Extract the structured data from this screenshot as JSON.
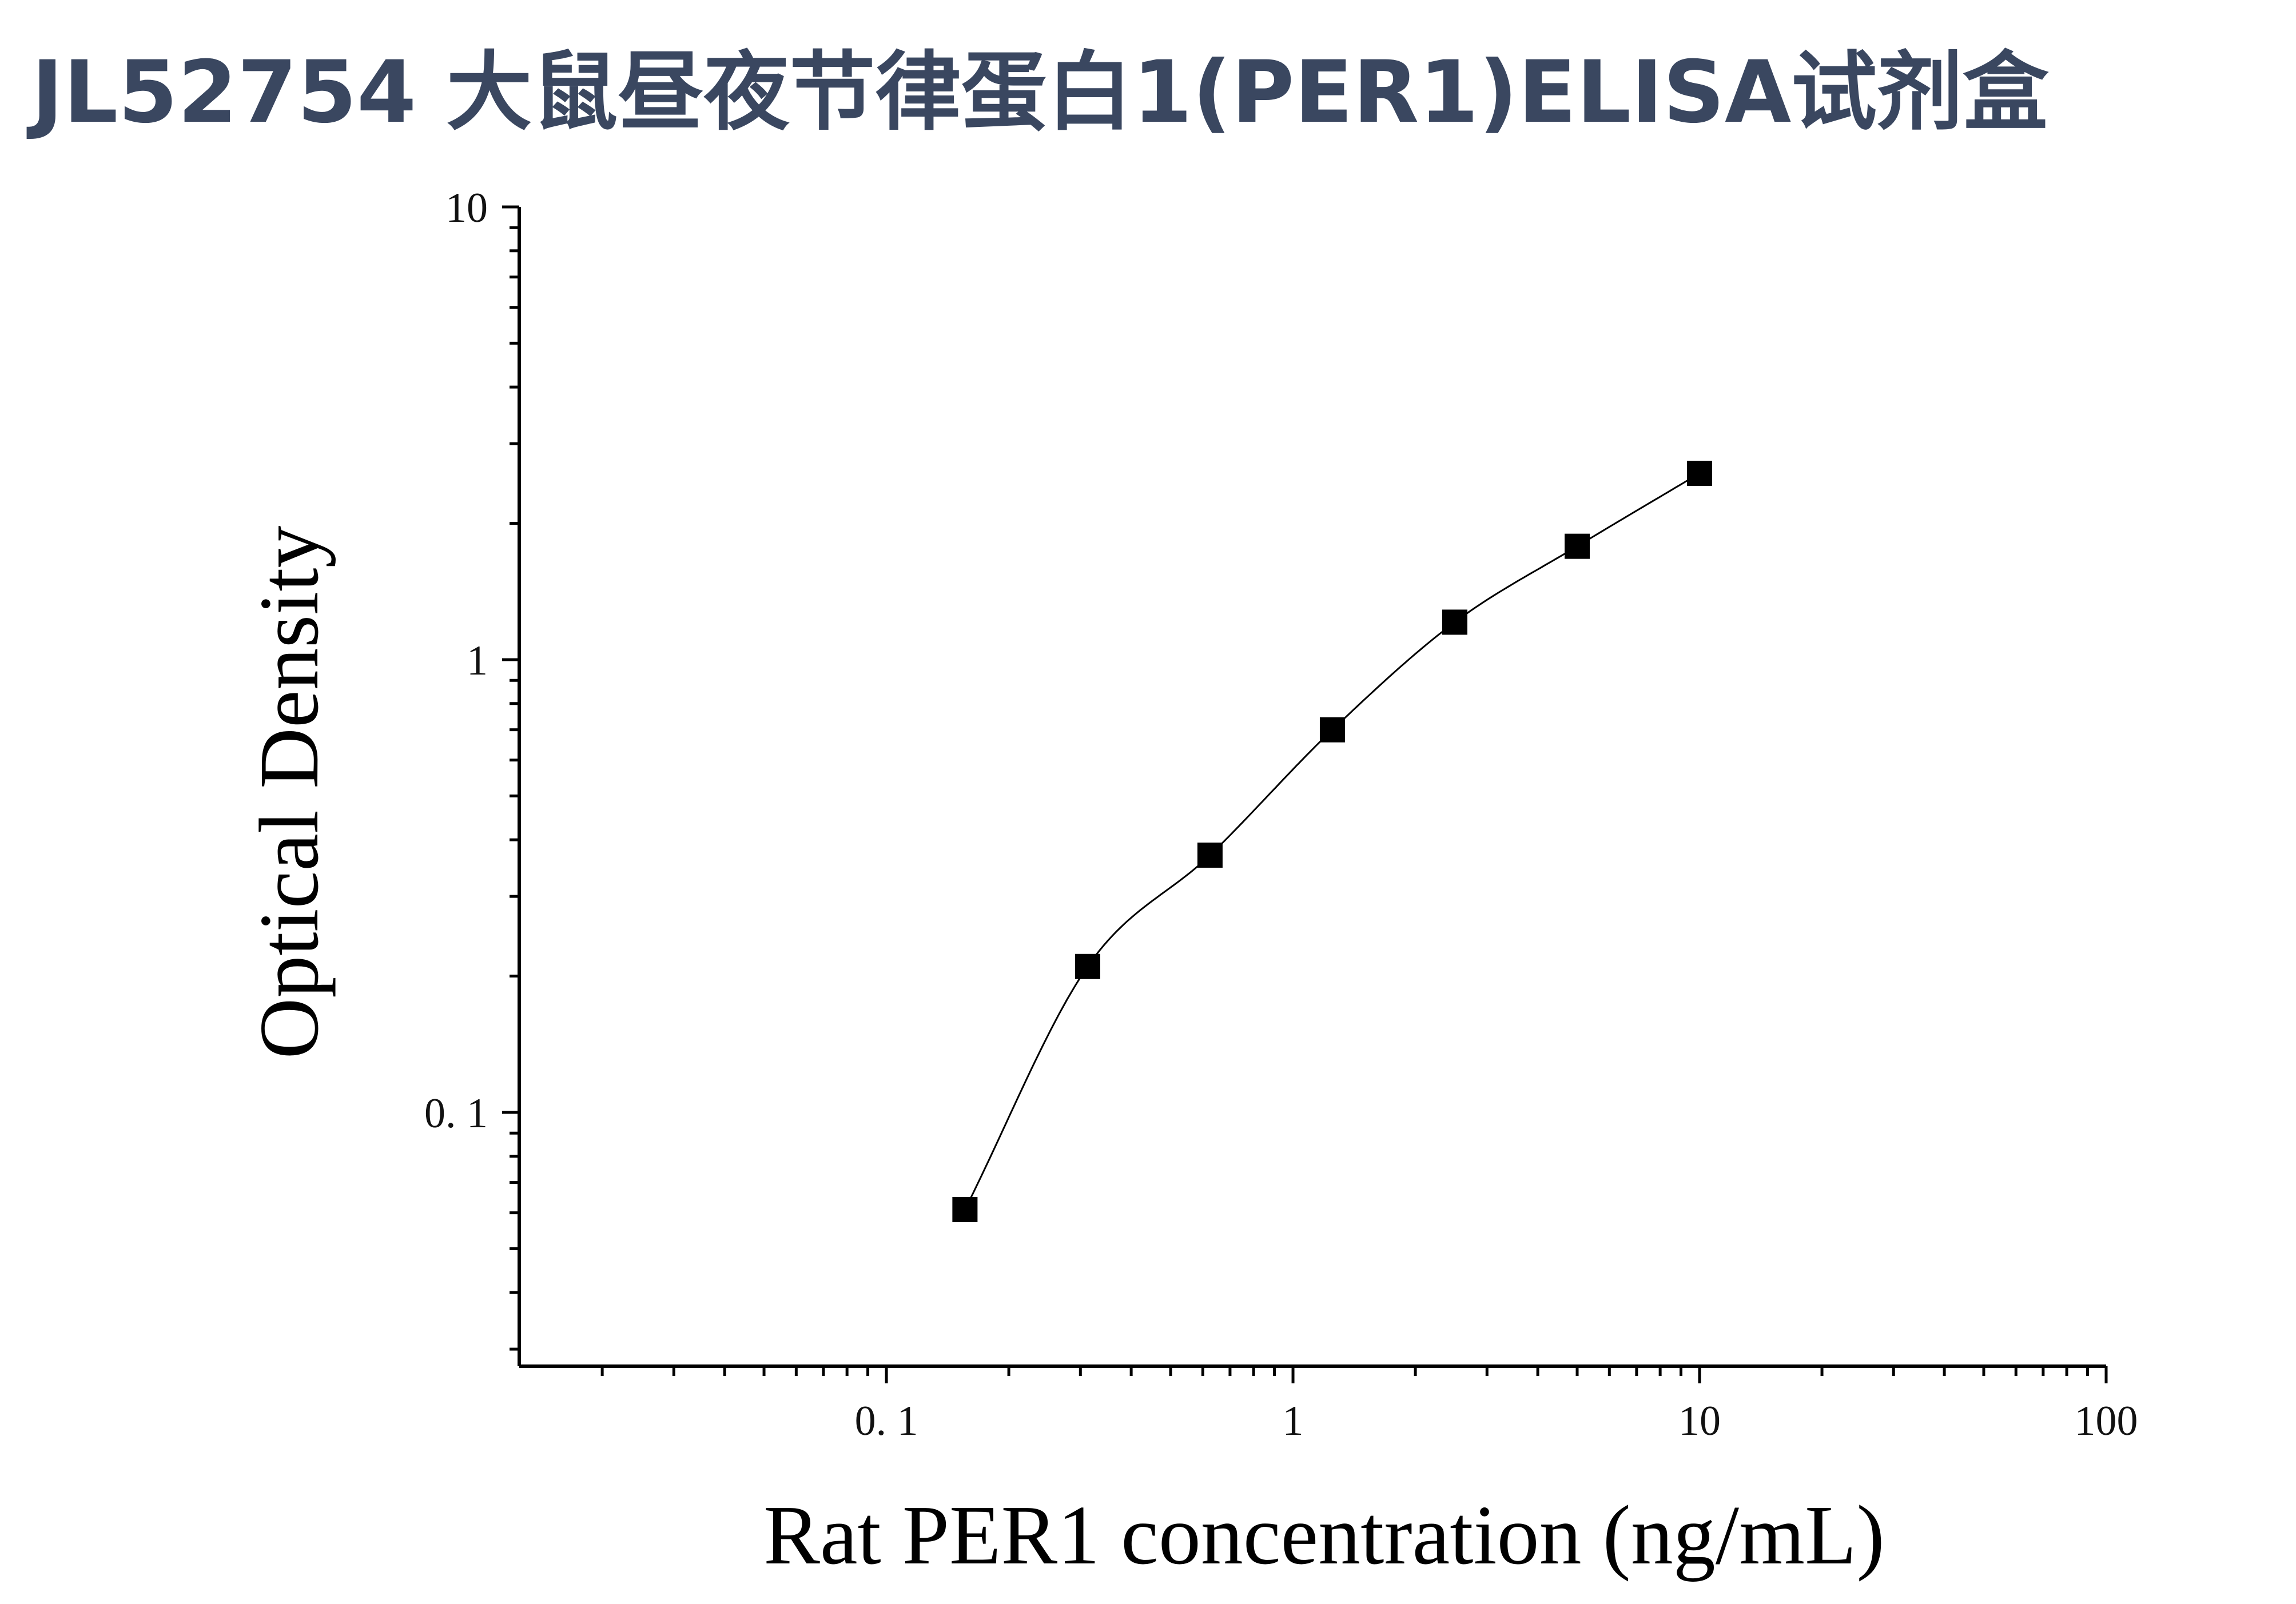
{
  "page_title": "JL52754 大鼠昼夜节律蛋白1(PER1)ELISA试剂盒",
  "chart_data": {
    "type": "scatter",
    "title": "",
    "xlabel": "Rat PER1 concentration (ng/mL)",
    "ylabel": "Optical Density",
    "x_scale": "log",
    "y_scale": "log",
    "xlim": [
      0.0125,
      100
    ],
    "ylim": [
      0.0275,
      10
    ],
    "x_ticks": [
      {
        "value": 0.1,
        "label": "0. 1"
      },
      {
        "value": 1,
        "label": "1"
      },
      {
        "value": 10,
        "label": "10"
      },
      {
        "value": 100,
        "label": "100"
      }
    ],
    "y_ticks": [
      {
        "value": 0.1,
        "label": "0. 1"
      },
      {
        "value": 1,
        "label": "1"
      },
      {
        "value": 10,
        "label": "10"
      }
    ],
    "grid": false,
    "legend": "none",
    "colors": {
      "points": "#000000",
      "curve": "#000000",
      "title": "#3a4760"
    },
    "series": [
      {
        "marker": "square",
        "points": [
          {
            "x": 0.156,
            "y": 0.061
          },
          {
            "x": 0.3125,
            "y": 0.21
          },
          {
            "x": 0.625,
            "y": 0.37
          },
          {
            "x": 1.25,
            "y": 0.7
          },
          {
            "x": 2.5,
            "y": 1.21
          },
          {
            "x": 5,
            "y": 1.78
          },
          {
            "x": 10,
            "y": 2.58
          }
        ]
      }
    ],
    "fit_curve": {
      "type": "smooth",
      "x_range": [
        0.156,
        10
      ]
    }
  }
}
